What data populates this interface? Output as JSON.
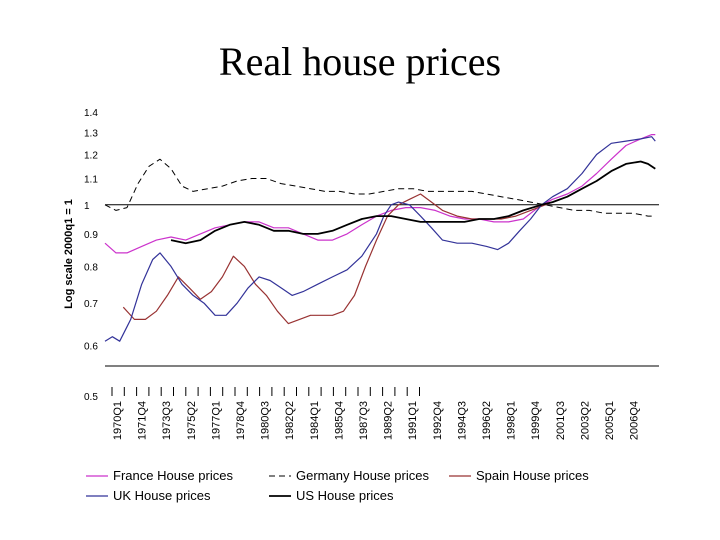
{
  "title": "Real house prices",
  "chart_data": {
    "type": "line",
    "ylabel": "Log scale 2000q1 = 1",
    "xlabel": "",
    "ylim": [
      0.5,
      1.4
    ],
    "yscale": "log",
    "yticks": [
      "1.4",
      "1.3",
      "1.2",
      "1.1",
      "1",
      "0.9",
      "0.8",
      "0.7",
      "0.6",
      "0.5"
    ],
    "xtick_labels": [
      "1970Q1",
      "1971Q4",
      "1973Q3",
      "1975Q2",
      "1977Q1",
      "1978Q4",
      "1980Q3",
      "1982Q2",
      "1984Q1",
      "1985Q4",
      "1987Q3",
      "1989Q2",
      "1991Q1",
      "1992Q4",
      "1994Q3",
      "1996Q2",
      "1998Q1",
      "1999Q4",
      "2001Q3",
      "2003Q2",
      "2005Q1",
      "2006Q4"
    ],
    "x_range": [
      1970.0,
      2007.75
    ],
    "reference_line": 1,
    "legend_position": "bottom",
    "series": [
      {
        "name": "France House prices",
        "color": "#cc33cc",
        "dash": "solid",
        "width": 1.2,
        "x": [
          1970.0,
          1970.75,
          1971.5,
          1972.5,
          1973.5,
          1974.5,
          1975.5,
          1976.5,
          1977.5,
          1978.5,
          1979.5,
          1980.5,
          1981.5,
          1982.5,
          1983.5,
          1984.5,
          1985.5,
          1986.5,
          1987.5,
          1988.5,
          1989.5,
          1990.5,
          1991.5,
          1992.5,
          1993.5,
          1994.5,
          1995.5,
          1996.5,
          1997.5,
          1998.5,
          1999.75,
          2000.5,
          2001.5,
          2002.5,
          2003.5,
          2004.5,
          2005.5,
          2006.5,
          2007.25,
          2007.5
        ],
        "y": [
          0.87,
          0.84,
          0.84,
          0.86,
          0.88,
          0.89,
          0.88,
          0.9,
          0.92,
          0.93,
          0.94,
          0.94,
          0.92,
          0.92,
          0.9,
          0.88,
          0.88,
          0.9,
          0.93,
          0.96,
          0.98,
          0.99,
          0.99,
          0.98,
          0.96,
          0.95,
          0.95,
          0.94,
          0.94,
          0.95,
          1.0,
          1.02,
          1.04,
          1.07,
          1.12,
          1.18,
          1.24,
          1.27,
          1.29,
          1.29
        ]
      },
      {
        "name": "Germany House prices",
        "color": "#000000",
        "dash": "dashed",
        "width": 1.0,
        "x": [
          1970.0,
          1970.75,
          1971.5,
          1972.25,
          1973.0,
          1973.75,
          1974.5,
          1975.25,
          1976.0,
          1977.0,
          1978.0,
          1979.0,
          1980.0,
          1981.0,
          1982.0,
          1983.0,
          1984.0,
          1985.0,
          1986.0,
          1987.0,
          1988.0,
          1989.0,
          1990.0,
          1991.0,
          1992.0,
          1993.0,
          1994.0,
          1995.0,
          1996.0,
          1997.0,
          1998.0,
          1999.0,
          2000.0,
          2001.0,
          2002.0,
          2003.0,
          2004.0,
          2005.0,
          2006.0,
          2007.0,
          2007.5
        ],
        "y": [
          1.0,
          0.98,
          0.99,
          1.08,
          1.15,
          1.18,
          1.14,
          1.07,
          1.05,
          1.06,
          1.07,
          1.09,
          1.1,
          1.1,
          1.08,
          1.07,
          1.06,
          1.05,
          1.05,
          1.04,
          1.04,
          1.05,
          1.06,
          1.06,
          1.05,
          1.05,
          1.05,
          1.05,
          1.04,
          1.03,
          1.02,
          1.01,
          1.0,
          0.99,
          0.98,
          0.98,
          0.97,
          0.97,
          0.97,
          0.96,
          0.96
        ]
      },
      {
        "name": "Spain House prices",
        "color": "#993333",
        "dash": "solid",
        "width": 1.2,
        "x": [
          1971.25,
          1972.0,
          1972.75,
          1973.5,
          1974.25,
          1975.0,
          1975.75,
          1976.5,
          1977.25,
          1978.0,
          1978.75,
          1979.5,
          1980.25,
          1981.0,
          1981.75,
          1982.5,
          1983.25,
          1984.0,
          1984.75,
          1985.5,
          1986.25,
          1987.0,
          1987.75,
          1988.5,
          1989.25,
          1990.0,
          1990.75,
          1991.5,
          1992.25,
          1993.0,
          1994.0,
          1995.0,
          1996.0,
          1997.0,
          1998.0,
          1999.0,
          2000.0,
          2001.0
        ],
        "y": [
          0.69,
          0.66,
          0.66,
          0.68,
          0.72,
          0.77,
          0.74,
          0.71,
          0.73,
          0.77,
          0.83,
          0.8,
          0.75,
          0.72,
          0.68,
          0.65,
          0.66,
          0.67,
          0.67,
          0.67,
          0.68,
          0.72,
          0.8,
          0.88,
          0.96,
          1.0,
          1.02,
          1.04,
          1.01,
          0.98,
          0.96,
          0.95,
          0.95,
          0.95,
          0.96,
          0.98,
          1.0,
          1.02
        ]
      },
      {
        "name": "UK House prices",
        "color": "#333399",
        "dash": "solid",
        "width": 1.2,
        "x": [
          1970.0,
          1970.5,
          1971.0,
          1971.75,
          1972.5,
          1973.25,
          1973.75,
          1974.5,
          1975.25,
          1976.0,
          1976.75,
          1977.5,
          1978.25,
          1979.0,
          1979.75,
          1980.5,
          1981.25,
          1982.0,
          1982.75,
          1983.5,
          1984.5,
          1985.5,
          1986.5,
          1987.5,
          1988.5,
          1989.0,
          1989.5,
          1990.0,
          1990.75,
          1991.5,
          1992.25,
          1993.0,
          1994.0,
          1995.0,
          1996.0,
          1996.75,
          1997.5,
          1998.25,
          1999.0,
          1999.75,
          2000.5,
          2001.5,
          2002.5,
          2003.0,
          2003.5,
          2004.5,
          2005.5,
          2006.5,
          2007.25,
          2007.5
        ],
        "y": [
          0.61,
          0.62,
          0.61,
          0.66,
          0.75,
          0.82,
          0.84,
          0.8,
          0.75,
          0.72,
          0.7,
          0.67,
          0.67,
          0.7,
          0.74,
          0.77,
          0.76,
          0.74,
          0.72,
          0.73,
          0.75,
          0.77,
          0.79,
          0.83,
          0.9,
          0.96,
          1.0,
          1.01,
          1.0,
          0.96,
          0.92,
          0.88,
          0.87,
          0.87,
          0.86,
          0.85,
          0.87,
          0.91,
          0.95,
          1.0,
          1.03,
          1.06,
          1.12,
          1.16,
          1.2,
          1.25,
          1.26,
          1.27,
          1.28,
          1.26
        ]
      },
      {
        "name": "US House prices",
        "color": "#000000",
        "dash": "solid",
        "width": 1.8,
        "x": [
          1974.5,
          1975.5,
          1976.5,
          1977.5,
          1978.5,
          1979.5,
          1980.5,
          1981.5,
          1982.5,
          1983.5,
          1984.5,
          1985.5,
          1986.5,
          1987.5,
          1988.5,
          1989.5,
          1990.5,
          1991.5,
          1992.5,
          1993.5,
          1994.5,
          1995.5,
          1996.5,
          1997.5,
          1998.5,
          1999.75,
          2000.5,
          2001.5,
          2002.5,
          2003.5,
          2004.5,
          2005.5,
          2006.5,
          2007.0,
          2007.5
        ],
        "y": [
          0.88,
          0.87,
          0.88,
          0.91,
          0.93,
          0.94,
          0.93,
          0.91,
          0.91,
          0.9,
          0.9,
          0.91,
          0.93,
          0.95,
          0.96,
          0.96,
          0.95,
          0.94,
          0.94,
          0.94,
          0.94,
          0.95,
          0.95,
          0.96,
          0.98,
          1.0,
          1.01,
          1.03,
          1.06,
          1.09,
          1.13,
          1.16,
          1.17,
          1.16,
          1.14
        ]
      }
    ]
  }
}
